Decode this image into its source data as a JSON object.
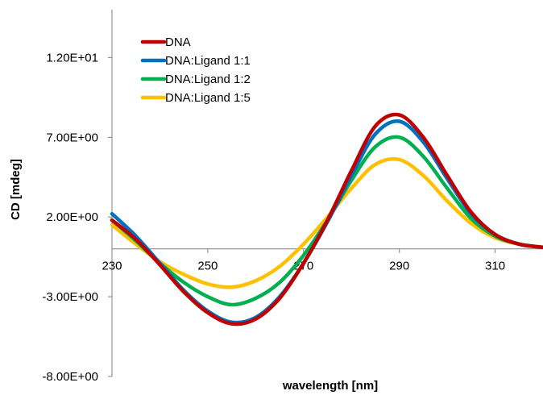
{
  "chart_data": {
    "type": "line",
    "title": "",
    "xlabel": "wavelength [nm]",
    "ylabel": "CD [mdeg]",
    "xlim": [
      230,
      320
    ],
    "ylim": [
      -8,
      15
    ],
    "x_ticks": [
      230,
      250,
      270,
      290,
      310
    ],
    "x_tick_labels": [
      "230",
      "250",
      "270",
      "290",
      "310"
    ],
    "y_ticks": [
      12,
      7,
      2,
      -3,
      -8
    ],
    "y_tick_labels": [
      "1.20E+01",
      "7.00E+00",
      "2.00E+00",
      "-3.00E+00",
      "-8.00E+00"
    ],
    "grid": false,
    "legend_position": "top-left",
    "x": [
      230,
      235,
      240,
      245,
      250,
      255,
      260,
      265,
      270,
      275,
      280,
      285,
      290,
      295,
      300,
      305,
      310,
      315,
      320
    ],
    "series": [
      {
        "name": "DNA",
        "color": "#c00000",
        "values": [
          1.8,
          0.6,
          -1.0,
          -2.7,
          -4.0,
          -4.7,
          -4.4,
          -3.1,
          -0.9,
          1.8,
          4.9,
          7.7,
          8.4,
          7.0,
          4.6,
          2.3,
          0.9,
          0.3,
          0.1
        ]
      },
      {
        "name": "DNA:Ligand 1:1",
        "color": "#0070c0",
        "values": [
          2.2,
          0.8,
          -0.9,
          -2.6,
          -3.9,
          -4.6,
          -4.3,
          -3.0,
          -0.9,
          1.7,
          4.6,
          7.2,
          8.0,
          6.7,
          4.4,
          2.2,
          0.9,
          0.3,
          0.1
        ]
      },
      {
        "name": "DNA:Ligand 1:2",
        "color": "#00b050",
        "values": [
          1.8,
          0.5,
          -0.9,
          -2.1,
          -3.0,
          -3.5,
          -3.1,
          -2.1,
          -0.4,
          1.8,
          4.3,
          6.4,
          7.0,
          5.8,
          3.8,
          1.9,
          0.8,
          0.3,
          0.1
        ]
      },
      {
        "name": "DNA:Ligand 1:5",
        "color": "#ffc000",
        "values": [
          1.5,
          0.3,
          -0.8,
          -1.6,
          -2.2,
          -2.4,
          -2.0,
          -1.1,
          0.3,
          2.0,
          3.8,
          5.3,
          5.6,
          4.6,
          3.0,
          1.6,
          0.7,
          0.3,
          0.1
        ]
      }
    ]
  }
}
